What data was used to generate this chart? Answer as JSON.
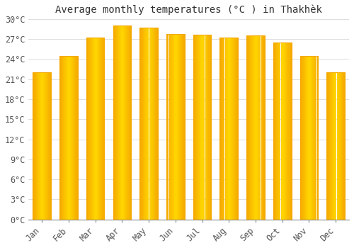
{
  "title": "Average monthly temperatures (°C ) in Thakhèk",
  "months": [
    "Jan",
    "Feb",
    "Mar",
    "Apr",
    "May",
    "Jun",
    "Jul",
    "Aug",
    "Sep",
    "Oct",
    "Nov",
    "Dec"
  ],
  "temperatures": [
    22,
    24.5,
    27.2,
    29.0,
    28.7,
    27.8,
    27.6,
    27.2,
    27.5,
    26.5,
    24.5,
    22
  ],
  "bar_color_center": "#FFD700",
  "bar_color_edge": "#F5A800",
  "background_color": "#FFFFFF",
  "grid_color": "#DDDDDD",
  "ylim": [
    0,
    30
  ],
  "ytick_step": 3,
  "title_fontsize": 10,
  "tick_fontsize": 8.5,
  "bar_width": 0.68
}
